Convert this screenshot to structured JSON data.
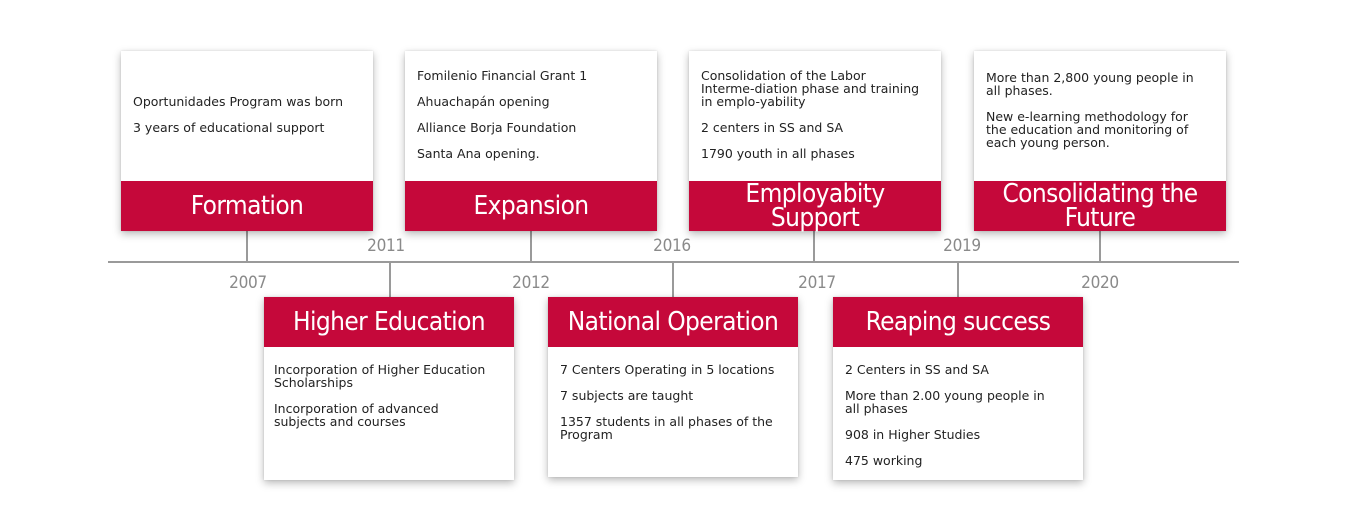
{
  "years_above": [
    "2011",
    "2016",
    "2019"
  ],
  "years_below": [
    "2007",
    "2012",
    "2017",
    "2020"
  ],
  "cards_top": [
    {
      "title": "Formation",
      "lines": [
        "Oportunidades Program was born",
        "3 years of educational support"
      ]
    },
    {
      "title": "Expansion",
      "lines": [
        "Fomilenio Financial Grant 1",
        "Ahuachapán opening",
        "Alliance Borja Foundation",
        "Santa Ana opening."
      ]
    },
    {
      "title": "Employabity Support",
      "lines": [
        "Consolidation of the Labor Interme-diation phase and training in emplo-yability",
        "2 centers in SS and SA",
        "1790 youth in all phases"
      ]
    },
    {
      "title": "Consolidating the Future",
      "lines": [
        "More than 2,800 young people in all phases.",
        "New e-learning methodology for the education and monitoring of each young person."
      ]
    }
  ],
  "cards_bottom": [
    {
      "title": "Higher Education",
      "lines": [
        "Incorporation of Higher Education Scholarships",
        "Incorporation of advanced subjects and courses"
      ]
    },
    {
      "title": "National Operation",
      "lines": [
        "7 Centers Operating in 5 locations",
        "7 subjects are taught",
        "1357 students in all phases of the Program"
      ]
    },
    {
      "title": "Reaping success",
      "lines": [
        "2 Centers in SS and SA",
        "More than 2.00 young people in all phases",
        "908 in Higher Studies",
        "475 working"
      ]
    }
  ]
}
